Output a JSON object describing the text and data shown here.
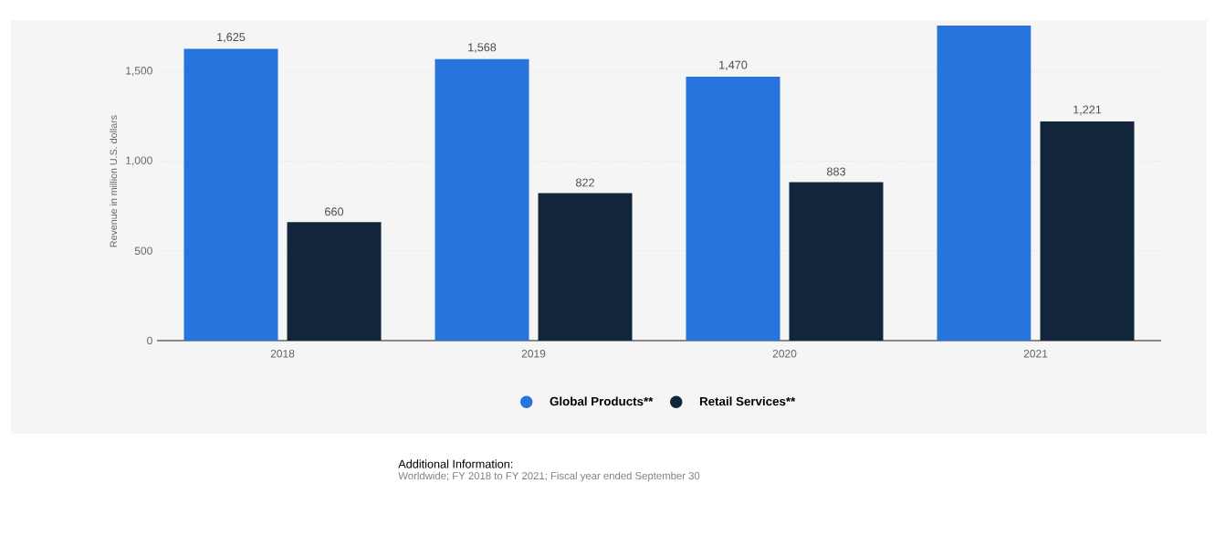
{
  "chart_data": {
    "type": "bar",
    "ylabel": "Revenue in million U.S. dollars",
    "categories": [
      "2018",
      "2019",
      "2020",
      "2021"
    ],
    "series": [
      {
        "name": "Global Products**",
        "color": "#2775dc",
        "values": [
          1625,
          1568,
          1470,
          1755
        ],
        "value_labels": [
          "1,625",
          "1,568",
          "1,470",
          null
        ]
      },
      {
        "name": "Retail Services**",
        "color": "#12263b",
        "values": [
          660,
          822,
          883,
          1221
        ],
        "value_labels": [
          "660",
          "822",
          "883",
          "1,221"
        ]
      }
    ],
    "ylim": [
      0,
      1775
    ],
    "yticks": [
      0,
      500,
      {
        "value": 1000,
        "label": "1,000"
      },
      {
        "value": 1500,
        "label": "1,500"
      }
    ],
    "grid": "y",
    "legend": "bottom",
    "annotations": [
      "Additional Information:",
      "Worldwide; FY 2018 to FY 2021; Fiscal year ended September 30"
    ]
  }
}
